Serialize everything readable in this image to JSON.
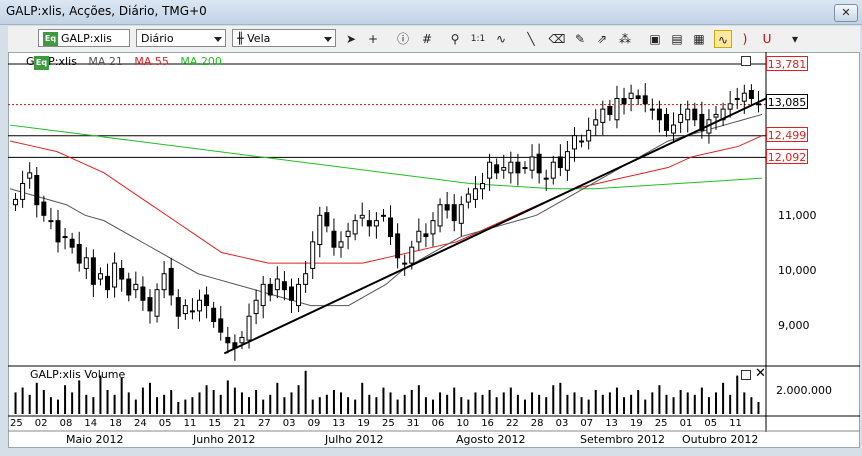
{
  "window": {
    "title": "GALP:xlis, Acções, Diário, TMG+0"
  },
  "toolbar": {
    "symbol": "GALP:xlis",
    "period": "Diário",
    "chart_style": "Vela",
    "zoom_label": "1:1",
    "eq_badge": "Eq"
  },
  "legend": {
    "symbol": "GALP:xlis",
    "ma21": "MA 21",
    "ma55": "MA 55",
    "ma200": "MA 200",
    "ma21_color": "#555555",
    "ma55_color": "#e02020",
    "ma200_color": "#20c020"
  },
  "price_labels": {
    "top": "13,781",
    "last": "13,085",
    "level1": "12,499",
    "level2": "12,092"
  },
  "volume": {
    "label": "GALP:xlis Volume",
    "axis": "2.000.000"
  },
  "chart_data": {
    "type": "candlestick",
    "y_ticks": [
      "11,000",
      "10,000",
      "9,000"
    ],
    "x_ticks": [
      "25",
      "02",
      "08",
      "14",
      "18",
      "24",
      "05",
      "11",
      "15",
      "21",
      "27",
      "03",
      "09",
      "13",
      "19",
      "25",
      "31",
      "06",
      "10",
      "16",
      "22",
      "28",
      "03",
      "07",
      "13",
      "19",
      "25",
      "01",
      "05",
      "11"
    ],
    "months": [
      "Maio 2012",
      "Junho 2012",
      "Julho 2012",
      "Agosto 2012",
      "Setembro 2012",
      "Outubro 2012"
    ],
    "horizontal_levels": [
      13.781,
      13.085,
      12.499,
      12.092
    ],
    "trendline": {
      "from": 8.4,
      "to": 13.2
    },
    "closes": [
      11.3,
      11.6,
      11.8,
      11.2,
      11.0,
      10.9,
      10.5,
      10.6,
      10.4,
      10.1,
      10.2,
      9.7,
      9.9,
      9.6,
      10.1,
      9.8,
      9.5,
      9.7,
      9.4,
      9.2,
      9.6,
      9.9,
      9.5,
      9.1,
      9.3,
      9.2,
      9.4,
      9.3,
      9.0,
      8.8,
      8.6,
      8.5,
      8.7,
      9.1,
      9.4,
      9.7,
      9.5,
      9.8,
      9.6,
      9.4,
      9.7,
      9.9,
      10.5,
      11.0,
      10.8,
      10.4,
      10.5,
      10.7,
      10.9,
      11.0,
      10.8,
      10.9,
      11.0,
      10.6,
      10.2,
      10.1,
      10.4,
      10.7,
      10.6,
      10.9,
      11.2,
      11.1,
      10.9,
      11.2,
      11.4,
      11.5,
      11.6,
      12.0,
      11.8,
      11.9,
      12.0,
      11.8,
      11.9,
      12.1,
      11.8,
      11.7,
      12.0,
      11.9,
      12.2,
      12.5,
      12.4,
      12.6,
      12.8,
      13.0,
      12.9,
      13.2,
      13.1,
      13.3,
      13.2,
      13.1,
      13.0,
      12.8,
      12.6,
      12.7,
      12.9,
      13.0,
      12.8,
      12.6,
      12.8,
      12.9,
      13.0,
      13.1,
      13.2,
      13.3,
      13.2,
      13.1
    ],
    "ma21": [
      11.5,
      11.4,
      11.3,
      11.2,
      11.0,
      10.9,
      10.7,
      10.5,
      10.3,
      10.1,
      9.9,
      9.8,
      9.7,
      9.6,
      9.5,
      9.4,
      9.3,
      9.3,
      9.3,
      9.5,
      9.7,
      10.0,
      10.2,
      10.4,
      10.6,
      10.7,
      10.8,
      10.9,
      11.0,
      11.2,
      11.4,
      11.6,
      11.8,
      12.0,
      12.2,
      12.4,
      12.5,
      12.6,
      12.7,
      12.8,
      12.9
    ],
    "ma55": [
      12.4,
      12.3,
      12.2,
      12.0,
      11.8,
      11.5,
      11.2,
      10.9,
      10.6,
      10.3,
      10.2,
      10.1,
      10.1,
      10.1,
      10.1,
      10.1,
      10.2,
      10.3,
      10.4,
      10.5,
      10.7,
      10.9,
      11.1,
      11.3,
      11.5,
      11.6,
      11.7,
      11.8,
      11.9,
      12.1,
      12.2,
      12.3,
      12.5
    ],
    "ma200": [
      12.7,
      12.6,
      12.5,
      12.4,
      12.3,
      12.2,
      12.1,
      12.0,
      11.9,
      11.8,
      11.7,
      11.6,
      11.55,
      11.5,
      11.5,
      11.55,
      11.6,
      11.65,
      11.7
    ],
    "volumes": [
      0.9,
      1.1,
      0.8,
      1.3,
      1.0,
      0.7,
      0.6,
      1.2,
      0.9,
      1.4,
      0.8,
      0.7,
      1.6,
      1.0,
      0.8,
      1.5,
      0.9,
      0.6,
      1.1,
      1.3,
      0.7,
      0.8,
      1.0,
      0.5,
      0.6,
      0.7,
      0.9,
      1.2,
      1.0,
      0.8,
      1.4,
      1.1,
      0.9,
      0.7,
      1.0,
      0.6,
      0.8,
      1.3,
      0.7,
      0.9,
      1.2,
      1.8,
      0.6,
      0.7,
      0.8,
      1.0,
      0.9,
      0.7,
      0.6,
      1.3,
      0.8,
      0.7,
      1.1,
      0.9,
      0.6,
      0.8,
      1.0,
      1.2,
      0.7,
      0.6,
      0.9,
      0.8,
      1.1,
      0.7,
      0.6,
      0.9,
      0.8,
      1.0,
      0.7,
      0.9,
      1.1,
      0.8,
      0.6,
      0.9,
      0.8,
      0.7,
      1.2,
      1.3,
      0.8,
      0.9,
      0.7,
      0.6,
      1.0,
      0.8,
      0.9,
      1.1,
      0.7,
      0.8,
      1.0,
      0.6,
      0.9,
      1.2,
      0.8,
      0.7,
      1.0,
      0.9,
      0.8,
      1.1,
      0.7,
      0.9,
      1.3,
      0.8,
      1.6,
      0.9,
      0.7,
      0.5
    ]
  }
}
